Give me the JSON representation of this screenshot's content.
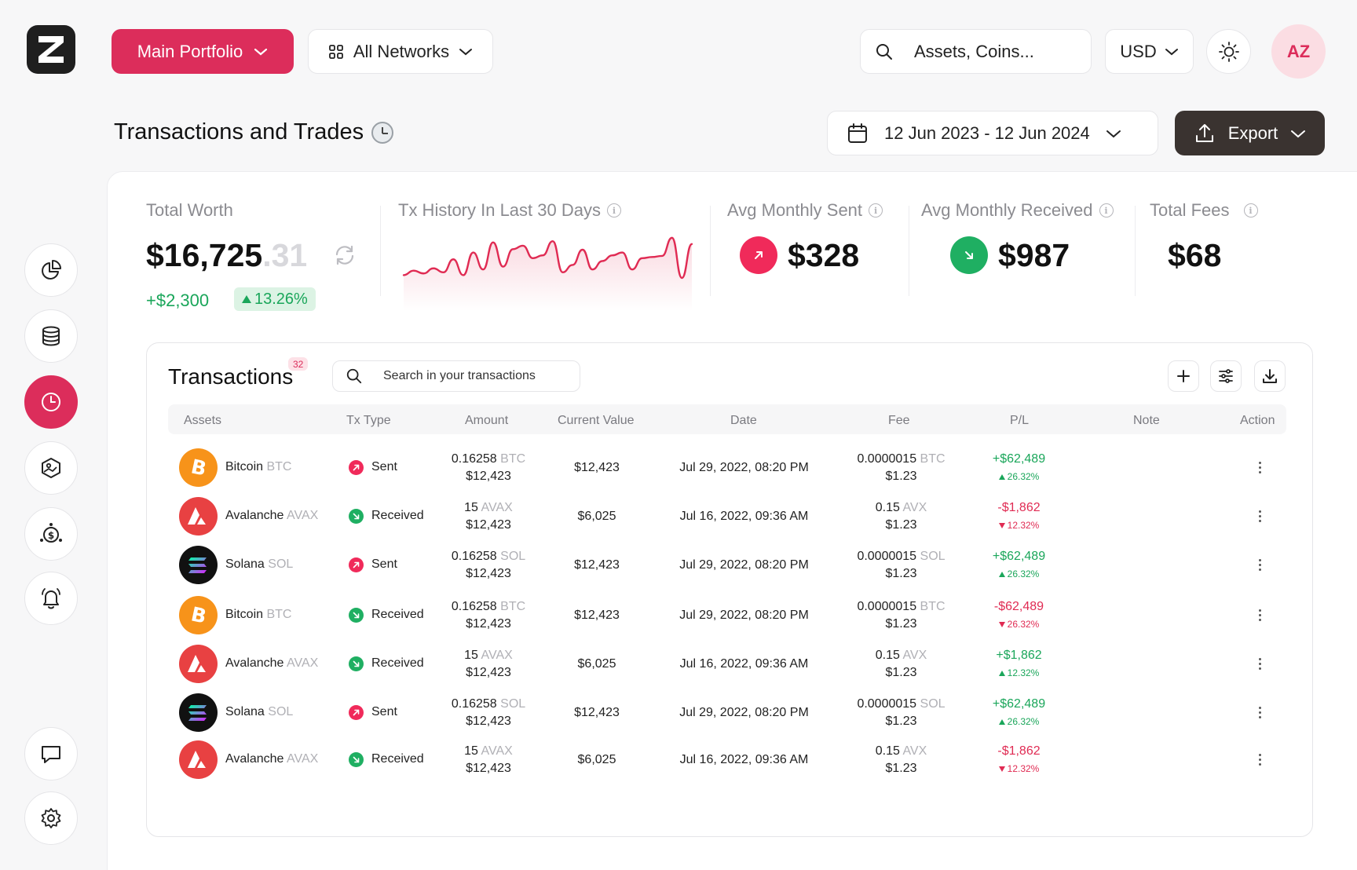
{
  "header": {
    "portfolio": "Main Portfolio",
    "networks": "All Networks",
    "search_placeholder": "Assets, Coins...",
    "currency": "USD",
    "avatar": "AZ"
  },
  "page": {
    "title": "Transactions and Trades",
    "date_range": "12 Jun 2023 - 12 Jun 2024",
    "export_label": "Export"
  },
  "stats": {
    "total_worth": {
      "label": "Total Worth",
      "value_main": "$16,725",
      "value_decimals": ".31",
      "change": "+$2,300",
      "change_pct": "13.26%"
    },
    "history": {
      "label": "Tx History In Last 30 Days",
      "points": [
        30,
        38,
        33,
        42,
        35,
        58,
        30,
        70,
        40,
        88,
        45,
        76,
        82,
        60,
        65,
        90,
        35,
        48,
        75,
        40,
        55,
        65,
        70,
        40,
        60,
        62,
        64,
        96,
        25,
        85
      ]
    },
    "sent": {
      "label": "Avg Monthly Sent",
      "value": "$328"
    },
    "received": {
      "label": "Avg Monthly Received",
      "value": "$987"
    },
    "fees": {
      "label": "Total Fees",
      "value": "$68"
    }
  },
  "transactions": {
    "title": "Transactions",
    "count": "32",
    "search_placeholder": "Search in your transactions",
    "columns": [
      "Assets",
      "Tx Type",
      "Amount",
      "Current Value",
      "Date",
      "Fee",
      "P/L",
      "Note",
      "Action"
    ],
    "rows": [
      {
        "coin": "btc",
        "name": "Bitcoin",
        "ticker": "BTC",
        "type": "Sent",
        "amount": "0.16258",
        "amount_ticker": "BTC",
        "amount_usd": "$12,423",
        "value": "$12,423",
        "date": "Jul 29, 2022, 08:20 PM",
        "fee": "0.0000015",
        "fee_ticker": "BTC",
        "fee_usd": "$1.23",
        "pl": "+$62,489",
        "pl_pct": "26.32%",
        "pl_dir": "up"
      },
      {
        "coin": "avax",
        "name": "Avalanche",
        "ticker": "AVAX",
        "type": "Received",
        "amount": "15",
        "amount_ticker": "AVAX",
        "amount_usd": "$12,423",
        "value": "$6,025",
        "date": "Jul 16, 2022, 09:36 AM",
        "fee": "0.15",
        "fee_ticker": "AVX",
        "fee_usd": "$1.23",
        "pl": "-$1,862",
        "pl_pct": "12.32%",
        "pl_dir": "down"
      },
      {
        "coin": "sol",
        "name": "Solana",
        "ticker": "SOL",
        "type": "Sent",
        "amount": "0.16258",
        "amount_ticker": "SOL",
        "amount_usd": "$12,423",
        "value": "$12,423",
        "date": "Jul 29, 2022, 08:20 PM",
        "fee": "0.0000015",
        "fee_ticker": "SOL",
        "fee_usd": "$1.23",
        "pl": "+$62,489",
        "pl_pct": "26.32%",
        "pl_dir": "up"
      },
      {
        "coin": "btc",
        "name": "Bitcoin",
        "ticker": "BTC",
        "type": "Received",
        "amount": "0.16258",
        "amount_ticker": "BTC",
        "amount_usd": "$12,423",
        "value": "$12,423",
        "date": "Jul 29, 2022, 08:20 PM",
        "fee": "0.0000015",
        "fee_ticker": "BTC",
        "fee_usd": "$1.23",
        "pl": "-$62,489",
        "pl_pct": "26.32%",
        "pl_dir": "down"
      },
      {
        "coin": "avax",
        "name": "Avalanche",
        "ticker": "AVAX",
        "type": "Received",
        "amount": "15",
        "amount_ticker": "AVAX",
        "amount_usd": "$12,423",
        "value": "$6,025",
        "date": "Jul 16, 2022, 09:36 AM",
        "fee": "0.15",
        "fee_ticker": "AVX",
        "fee_usd": "$1.23",
        "pl": "+$1,862",
        "pl_pct": "12.32%",
        "pl_dir": "up"
      },
      {
        "coin": "sol",
        "name": "Solana",
        "ticker": "SOL",
        "type": "Sent",
        "amount": "0.16258",
        "amount_ticker": "SOL",
        "amount_usd": "$12,423",
        "value": "$12,423",
        "date": "Jul 29, 2022, 08:20 PM",
        "fee": "0.0000015",
        "fee_ticker": "SOL",
        "fee_usd": "$1.23",
        "pl": "+$62,489",
        "pl_pct": "26.32%",
        "pl_dir": "up"
      },
      {
        "coin": "avax",
        "name": "Avalanche",
        "ticker": "AVAX",
        "type": "Received",
        "amount": "15",
        "amount_ticker": "AVAX",
        "amount_usd": "$12,423",
        "value": "$6,025",
        "date": "Jul 16, 2022, 09:36 AM",
        "fee": "0.15",
        "fee_ticker": "AVX",
        "fee_usd": "$1.23",
        "pl": "-$1,862",
        "pl_pct": "12.32%",
        "pl_dir": "down"
      }
    ]
  },
  "colors": {
    "accent": "#dc2d5b",
    "up": "#1aa65a",
    "down": "#e02b53",
    "btc": "#f7931a",
    "avax": "#e84142",
    "sol": "#111111"
  }
}
